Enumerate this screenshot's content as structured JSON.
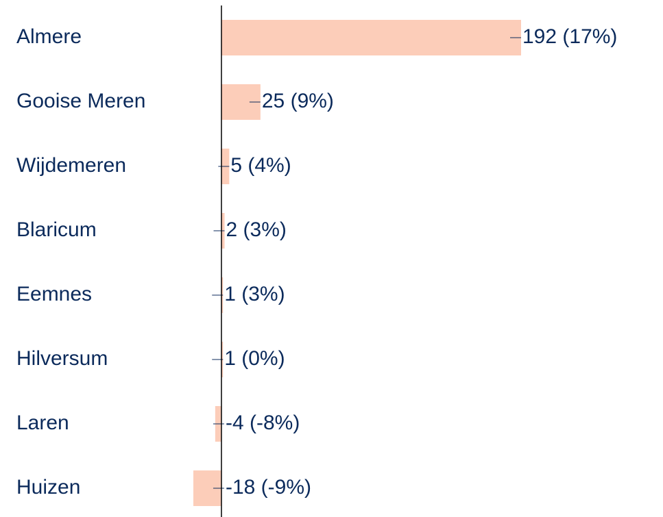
{
  "chart_data": {
    "type": "bar",
    "orientation": "horizontal",
    "categories": [
      "Almere",
      "Gooise Meren",
      "Wijdemeren",
      "Blaricum",
      "Eemnes",
      "Hilversum",
      "Laren",
      "Huizen"
    ],
    "values": [
      192,
      25,
      5,
      2,
      1,
      1,
      -4,
      -18
    ],
    "value_labels": [
      "192 (17%)",
      "25 (9%)",
      "5 (4%)",
      "2 (3%)",
      "1 (3%)",
      "1 (0%)",
      "-4 (-8%)",
      "-18 (-9%)"
    ],
    "color": "#fccdb9"
  }
}
